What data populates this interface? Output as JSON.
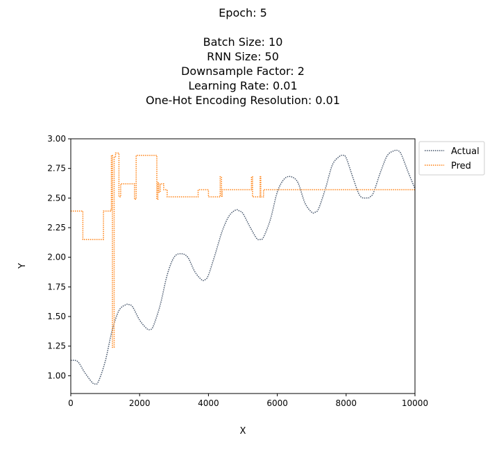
{
  "chart_data": {
    "type": "line",
    "title_lines": [
      "Epoch: 5",
      "",
      "Batch Size: 10",
      "RNN Size: 50",
      "Downsample Factor: 2",
      "Learning Rate: 0.01",
      "One-Hot Encoding Resolution: 0.01"
    ],
    "xlabel": "X",
    "ylabel": "Y",
    "xlim": [
      0,
      10000
    ],
    "ylim": [
      0.85,
      3.0
    ],
    "xticks": [
      0,
      2000,
      4000,
      6000,
      8000,
      10000
    ],
    "xtick_labels": [
      "0",
      "2000",
      "4000",
      "6000",
      "8000",
      "10000"
    ],
    "yticks": [
      1.0,
      1.25,
      1.5,
      1.75,
      2.0,
      2.25,
      2.5,
      2.75,
      3.0
    ],
    "ytick_labels": [
      "1.00",
      "1.25",
      "1.50",
      "1.75",
      "2.00",
      "2.25",
      "2.50",
      "2.75",
      "3.00"
    ],
    "grid": false,
    "legend_position": "outside-top-right",
    "series": [
      {
        "name": "Actual",
        "color": "#44546a",
        "style": "dotted",
        "x": [
          0,
          200,
          400,
          600,
          700,
          800,
          1000,
          1200,
          1400,
          1600,
          1700,
          1800,
          2000,
          2200,
          2300,
          2400,
          2600,
          2800,
          3000,
          3200,
          3400,
          3600,
          3800,
          3900,
          4000,
          4200,
          4400,
          4600,
          4800,
          4900,
          5000,
          5200,
          5400,
          5500,
          5600,
          5800,
          6000,
          6200,
          6400,
          6600,
          6800,
          7000,
          7100,
          7200,
          7400,
          7600,
          7800,
          7900,
          8000,
          8200,
          8400,
          8600,
          8700,
          8800,
          9000,
          9200,
          9400,
          9500,
          9600,
          9800,
          10000
        ],
        "y": [
          1.13,
          1.12,
          1.03,
          0.95,
          0.93,
          0.95,
          1.12,
          1.38,
          1.55,
          1.6,
          1.6,
          1.58,
          1.47,
          1.4,
          1.39,
          1.42,
          1.6,
          1.85,
          2.0,
          2.03,
          2.0,
          1.88,
          1.81,
          1.81,
          1.85,
          2.03,
          2.22,
          2.35,
          2.4,
          2.39,
          2.37,
          2.26,
          2.16,
          2.15,
          2.17,
          2.32,
          2.55,
          2.66,
          2.68,
          2.63,
          2.46,
          2.38,
          2.38,
          2.41,
          2.58,
          2.78,
          2.85,
          2.86,
          2.84,
          2.67,
          2.52,
          2.5,
          2.51,
          2.55,
          2.72,
          2.86,
          2.9,
          2.9,
          2.87,
          2.72,
          2.58
        ]
      },
      {
        "name": "Pred",
        "color": "#ff7f0e",
        "style": "dotted",
        "step_x": [
          0,
          350,
          950,
          1150,
          1180,
          1210,
          1260,
          1300,
          1400,
          1450,
          1850,
          1900,
          1950,
          2500,
          2530,
          2560,
          2600,
          2700,
          2800,
          3000,
          3500,
          3700,
          3900,
          4000,
          4300,
          4340,
          4380,
          4400,
          5250,
          5280,
          5300,
          5500,
          5520,
          5540,
          5600,
          6000,
          10000
        ],
        "step_y": [
          2.39,
          2.15,
          2.39,
          2.4,
          2.86,
          1.24,
          2.85,
          2.88,
          2.51,
          2.62,
          2.49,
          2.86,
          2.86,
          2.49,
          2.63,
          2.55,
          2.62,
          2.57,
          2.51,
          2.51,
          2.51,
          2.57,
          2.57,
          2.51,
          2.51,
          2.68,
          2.51,
          2.57,
          2.68,
          2.51,
          2.51,
          2.68,
          2.51,
          2.51,
          2.57,
          2.57,
          2.57
        ]
      }
    ]
  }
}
